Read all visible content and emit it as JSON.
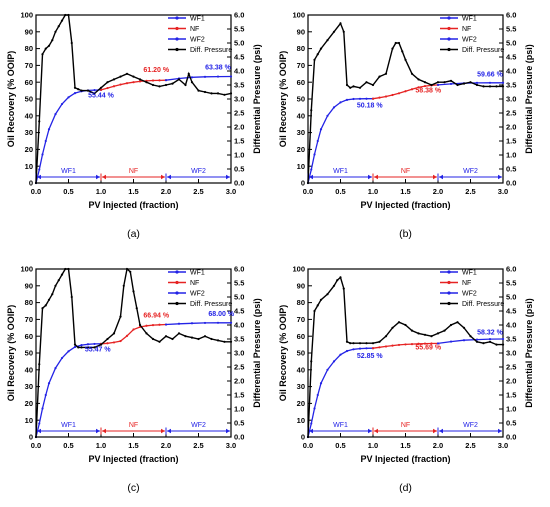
{
  "colors": {
    "wf": "#2323e6",
    "nf": "#e62323",
    "diff": "#000000",
    "axis": "#000000"
  },
  "chart_data": [
    {
      "type": "line",
      "panel_label": "(a)",
      "xlabel": "PV Injected (fraction)",
      "ylabel": "Oil Recovery (% OOIP)",
      "y2label": "Differential Pressure (psi)",
      "xlim": [
        0,
        3.0
      ],
      "ylim": [
        0,
        100
      ],
      "y2lim": [
        0,
        6.0
      ],
      "xticks": [
        "0.0",
        "0.5",
        "1.0",
        "1.5",
        "2.0",
        "2.5",
        "3.0"
      ],
      "yticks": [
        "0",
        "10",
        "20",
        "30",
        "40",
        "50",
        "60",
        "70",
        "80",
        "90",
        "100"
      ],
      "y2ticks": [
        "0.0",
        "0.5",
        "1.0",
        "1.5",
        "2.0",
        "2.5",
        "3.0",
        "3.5",
        "4.0",
        "4.5",
        "5.0",
        "5.5",
        "6.0"
      ],
      "legend": [
        "WF1",
        "NF",
        "WF2",
        "Diff. Pressure"
      ],
      "legend_position": "top-right",
      "phases": [
        {
          "label": "WF1",
          "from": 0,
          "to": 1.0,
          "color_key": "wf"
        },
        {
          "label": "NF",
          "from": 1.0,
          "to": 2.0,
          "color_key": "nf"
        },
        {
          "label": "WF2",
          "from": 2.0,
          "to": 3.0,
          "color_key": "wf"
        }
      ],
      "series": [
        {
          "name": "WF1",
          "axis": "left",
          "color_key": "wf",
          "x": [
            0,
            0.05,
            0.1,
            0.15,
            0.2,
            0.3,
            0.4,
            0.5,
            0.6,
            0.7,
            0.8,
            0.9,
            1.0
          ],
          "y": [
            0,
            8,
            17,
            25,
            32,
            41,
            47,
            51,
            53.5,
            54.6,
            55.1,
            55.3,
            55.44
          ]
        },
        {
          "name": "NF",
          "axis": "left",
          "color_key": "nf",
          "x": [
            1.0,
            1.1,
            1.2,
            1.3,
            1.4,
            1.5,
            1.6,
            1.7,
            1.8,
            1.9,
            2.0
          ],
          "y": [
            55.44,
            56.5,
            57.6,
            58.6,
            59.4,
            60.0,
            60.5,
            60.8,
            61.0,
            61.1,
            61.2
          ]
        },
        {
          "name": "WF2",
          "axis": "left",
          "color_key": "wf",
          "x": [
            2.0,
            2.2,
            2.4,
            2.6,
            2.8,
            3.0
          ],
          "y": [
            61.2,
            62.2,
            62.9,
            63.2,
            63.35,
            63.38
          ]
        },
        {
          "name": "Diff. Pressure",
          "axis": "right",
          "color_key": "diff",
          "x": [
            0,
            0.05,
            0.1,
            0.15,
            0.2,
            0.25,
            0.3,
            0.35,
            0.4,
            0.45,
            0.5,
            0.55,
            0.6,
            0.65,
            0.7,
            0.8,
            0.9,
            1.0,
            1.1,
            1.2,
            1.3,
            1.4,
            1.5,
            1.6,
            1.7,
            1.8,
            1.9,
            2.0,
            2.1,
            2.2,
            2.3,
            2.35,
            2.4,
            2.5,
            2.6,
            2.7,
            2.8,
            2.9,
            3.0
          ],
          "y": [
            0,
            2.2,
            4.6,
            4.8,
            4.9,
            5.1,
            5.4,
            5.6,
            5.8,
            6.0,
            6.0,
            5.0,
            3.4,
            3.35,
            3.3,
            3.3,
            3.2,
            3.4,
            3.6,
            3.7,
            3.8,
            3.9,
            3.8,
            3.7,
            3.6,
            3.5,
            3.45,
            3.5,
            3.55,
            3.7,
            3.5,
            3.9,
            3.6,
            3.3,
            3.25,
            3.2,
            3.2,
            3.15,
            3.2
          ]
        }
      ],
      "annotations": [
        {
          "text": "55.44 %",
          "x": 1.0,
          "y": 51,
          "color_key": "wf"
        },
        {
          "text": "61.20 %",
          "x": 1.85,
          "y": 66,
          "color_key": "nf"
        },
        {
          "text": "63.38 %",
          "x": 2.8,
          "y": 67.5,
          "color_key": "wf"
        }
      ]
    },
    {
      "type": "line",
      "panel_label": "(b)",
      "xlabel": "PV Injected (fraction)",
      "ylabel": "Oil Recovery (% OOIP)",
      "y2label": "Differential Pressure (psi)",
      "xlim": [
        0,
        3.0
      ],
      "ylim": [
        0,
        100
      ],
      "y2lim": [
        0,
        6.0
      ],
      "xticks": [
        "0.0",
        "0.5",
        "1.0",
        "1.5",
        "2.0",
        "2.5",
        "3.0"
      ],
      "yticks": [
        "0",
        "10",
        "20",
        "30",
        "40",
        "50",
        "60",
        "70",
        "80",
        "90",
        "100"
      ],
      "y2ticks": [
        "0.0",
        "0.5",
        "1.0",
        "1.5",
        "2.0",
        "2.5",
        "3.0",
        "3.5",
        "4.0",
        "4.5",
        "5.0",
        "5.5",
        "6.0"
      ],
      "legend": [
        "WF1",
        "NF",
        "WF2",
        "Diff. Pressure"
      ],
      "legend_position": "top-right",
      "phases": [
        {
          "label": "WF1",
          "from": 0,
          "to": 1.0,
          "color_key": "wf"
        },
        {
          "label": "NF",
          "from": 1.0,
          "to": 2.0,
          "color_key": "nf"
        },
        {
          "label": "WF2",
          "from": 2.0,
          "to": 3.0,
          "color_key": "wf"
        }
      ],
      "series": [
        {
          "name": "WF1",
          "axis": "left",
          "color_key": "wf",
          "x": [
            0,
            0.05,
            0.1,
            0.15,
            0.2,
            0.3,
            0.4,
            0.5,
            0.6,
            0.7,
            0.8,
            0.9,
            1.0
          ],
          "y": [
            0,
            8,
            17,
            25,
            32,
            40,
            45,
            48,
            49.5,
            50,
            50.1,
            50.15,
            50.18
          ]
        },
        {
          "name": "NF",
          "axis": "left",
          "color_key": "nf",
          "x": [
            1.0,
            1.1,
            1.2,
            1.3,
            1.4,
            1.5,
            1.6,
            1.7,
            1.8,
            1.9,
            2.0
          ],
          "y": [
            50.18,
            50.8,
            51.5,
            52.4,
            53.4,
            54.6,
            55.8,
            56.9,
            57.7,
            58.1,
            58.38
          ]
        },
        {
          "name": "WF2",
          "axis": "left",
          "color_key": "wf",
          "x": [
            2.0,
            2.2,
            2.4,
            2.6,
            2.8,
            3.0
          ],
          "y": [
            58.38,
            59.0,
            59.4,
            59.6,
            59.65,
            59.66
          ]
        },
        {
          "name": "Diff. Pressure",
          "axis": "right",
          "color_key": "diff",
          "x": [
            0,
            0.05,
            0.1,
            0.15,
            0.2,
            0.3,
            0.4,
            0.5,
            0.55,
            0.6,
            0.65,
            0.7,
            0.8,
            0.9,
            1.0,
            1.1,
            1.2,
            1.3,
            1.35,
            1.4,
            1.45,
            1.5,
            1.6,
            1.7,
            1.8,
            1.9,
            2.0,
            2.1,
            2.2,
            2.3,
            2.4,
            2.5,
            2.6,
            2.7,
            2.8,
            2.9,
            3.0
          ],
          "y": [
            0,
            2.6,
            4.4,
            4.6,
            4.8,
            5.1,
            5.4,
            5.7,
            5.4,
            3.5,
            3.4,
            3.45,
            3.4,
            3.6,
            3.5,
            3.8,
            3.9,
            4.8,
            5.0,
            5.0,
            4.7,
            4.4,
            3.9,
            3.7,
            3.6,
            3.5,
            3.6,
            3.6,
            3.65,
            3.5,
            3.55,
            3.6,
            3.5,
            3.45,
            3.45,
            3.45,
            3.45
          ]
        }
      ],
      "annotations": [
        {
          "text": "50.18 %",
          "x": 0.95,
          "y": 45,
          "color_key": "wf"
        },
        {
          "text": "58.38 %",
          "x": 1.85,
          "y": 54,
          "color_key": "nf"
        },
        {
          "text": "59.66 %",
          "x": 2.8,
          "y": 63.5,
          "color_key": "wf"
        }
      ]
    },
    {
      "type": "line",
      "panel_label": "(c)",
      "xlabel": "PV Injected (fraction)",
      "ylabel": "Oil Recovery (% OOIP)",
      "y2label": "Differential Pressure (psi)",
      "xlim": [
        0,
        3.0
      ],
      "ylim": [
        0,
        100
      ],
      "y2lim": [
        0,
        6.0
      ],
      "xticks": [
        "0.0",
        "0.5",
        "1.0",
        "1.5",
        "2.0",
        "2.5",
        "3.0"
      ],
      "yticks": [
        "0",
        "10",
        "20",
        "30",
        "40",
        "50",
        "60",
        "70",
        "80",
        "90",
        "100"
      ],
      "y2ticks": [
        "0.0",
        "0.5",
        "1.0",
        "1.5",
        "2.0",
        "2.5",
        "3.0",
        "3.5",
        "4.0",
        "4.5",
        "5.0",
        "5.5",
        "6.0"
      ],
      "legend": [
        "WF1",
        "NF",
        "WF2",
        "Diff. Pressure"
      ],
      "legend_position": "top-right",
      "phases": [
        {
          "label": "WF1",
          "from": 0,
          "to": 1.0,
          "color_key": "wf"
        },
        {
          "label": "NF",
          "from": 1.0,
          "to": 2.0,
          "color_key": "nf"
        },
        {
          "label": "WF2",
          "from": 2.0,
          "to": 3.0,
          "color_key": "wf"
        }
      ],
      "series": [
        {
          "name": "WF1",
          "axis": "left",
          "color_key": "wf",
          "x": [
            0,
            0.05,
            0.1,
            0.15,
            0.2,
            0.3,
            0.4,
            0.5,
            0.6,
            0.7,
            0.8,
            0.9,
            1.0
          ],
          "y": [
            0,
            8,
            17,
            25,
            32,
            41,
            47,
            51,
            53.6,
            54.7,
            55.2,
            55.4,
            55.47
          ]
        },
        {
          "name": "NF",
          "axis": "left",
          "color_key": "nf",
          "x": [
            1.0,
            1.1,
            1.2,
            1.3,
            1.4,
            1.5,
            1.6,
            1.7,
            1.8,
            1.9,
            2.0
          ],
          "y": [
            55.47,
            55.8,
            56.3,
            57.1,
            60.2,
            64.0,
            65.5,
            66.2,
            66.6,
            66.8,
            66.94
          ]
        },
        {
          "name": "WF2",
          "axis": "left",
          "color_key": "wf",
          "x": [
            2.0,
            2.2,
            2.4,
            2.6,
            2.8,
            3.0
          ],
          "y": [
            66.94,
            67.4,
            67.7,
            67.9,
            67.98,
            68.0
          ]
        },
        {
          "name": "Diff. Pressure",
          "axis": "right",
          "color_key": "diff",
          "x": [
            0,
            0.05,
            0.1,
            0.15,
            0.2,
            0.25,
            0.3,
            0.35,
            0.4,
            0.45,
            0.5,
            0.55,
            0.6,
            0.65,
            0.7,
            0.8,
            0.9,
            1.0,
            1.1,
            1.2,
            1.3,
            1.35,
            1.4,
            1.45,
            1.5,
            1.55,
            1.6,
            1.7,
            1.8,
            1.9,
            2.0,
            2.1,
            2.2,
            2.3,
            2.4,
            2.5,
            2.6,
            2.7,
            2.8,
            2.9,
            3.0
          ],
          "y": [
            0,
            2.6,
            4.6,
            4.7,
            4.9,
            5.1,
            5.4,
            5.6,
            5.8,
            6.0,
            6.0,
            5.0,
            3.3,
            3.2,
            3.2,
            3.2,
            3.2,
            3.3,
            3.5,
            3.7,
            4.3,
            5.4,
            6.0,
            5.9,
            5.2,
            4.6,
            4.0,
            3.7,
            3.5,
            3.4,
            3.6,
            3.5,
            3.7,
            3.6,
            3.55,
            3.5,
            3.6,
            3.5,
            3.45,
            3.4,
            3.4
          ]
        }
      ],
      "annotations": [
        {
          "text": "55.47 %",
          "x": 0.95,
          "y": 51,
          "color_key": "wf"
        },
        {
          "text": "66.94 %",
          "x": 1.85,
          "y": 71,
          "color_key": "nf"
        },
        {
          "text": "68.00 %",
          "x": 2.85,
          "y": 72,
          "color_key": "wf"
        }
      ]
    },
    {
      "type": "line",
      "panel_label": "(d)",
      "xlabel": "PV Injected (fraction)",
      "ylabel": "Oil Recovery (% OOIP)",
      "y2label": "Differential Pressure (psi)",
      "xlim": [
        0,
        3.0
      ],
      "ylim": [
        0,
        100
      ],
      "y2lim": [
        0,
        6.0
      ],
      "xticks": [
        "0.0",
        "0.5",
        "1.0",
        "1.5",
        "2.0",
        "2.5",
        "3.0"
      ],
      "yticks": [
        "0",
        "10",
        "20",
        "30",
        "40",
        "50",
        "60",
        "70",
        "80",
        "90",
        "100"
      ],
      "y2ticks": [
        "0.0",
        "0.5",
        "1.0",
        "1.5",
        "2.0",
        "2.5",
        "3.0",
        "3.5",
        "4.0",
        "4.5",
        "5.0",
        "5.5",
        "6.0"
      ],
      "legend": [
        "WF1",
        "NF",
        "WF2",
        "Diff. Pressure"
      ],
      "legend_position": "top-right",
      "phases": [
        {
          "label": "WF1",
          "from": 0,
          "to": 1.0,
          "color_key": "wf"
        },
        {
          "label": "NF",
          "from": 1.0,
          "to": 2.0,
          "color_key": "nf"
        },
        {
          "label": "WF2",
          "from": 2.0,
          "to": 3.0,
          "color_key": "wf"
        }
      ],
      "series": [
        {
          "name": "WF1",
          "axis": "left",
          "color_key": "wf",
          "x": [
            0,
            0.05,
            0.1,
            0.15,
            0.2,
            0.3,
            0.4,
            0.5,
            0.6,
            0.7,
            0.8,
            0.9,
            1.0
          ],
          "y": [
            0,
            8,
            17,
            25,
            32,
            40,
            45,
            49,
            51.2,
            52.2,
            52.6,
            52.8,
            52.85
          ]
        },
        {
          "name": "NF",
          "axis": "left",
          "color_key": "nf",
          "x": [
            1.0,
            1.1,
            1.2,
            1.3,
            1.4,
            1.5,
            1.6,
            1.7,
            1.8,
            1.9,
            2.0
          ],
          "y": [
            52.85,
            53.4,
            53.9,
            54.4,
            54.8,
            55.1,
            55.3,
            55.5,
            55.6,
            55.65,
            55.69
          ]
        },
        {
          "name": "WF2",
          "axis": "left",
          "color_key": "wf",
          "x": [
            2.0,
            2.2,
            2.4,
            2.6,
            2.8,
            3.0
          ],
          "y": [
            55.69,
            56.8,
            57.6,
            58.0,
            58.25,
            58.32
          ]
        },
        {
          "name": "Diff. Pressure",
          "axis": "right",
          "color_key": "diff",
          "x": [
            0,
            0.05,
            0.1,
            0.15,
            0.2,
            0.3,
            0.4,
            0.45,
            0.5,
            0.55,
            0.6,
            0.65,
            0.7,
            0.8,
            0.9,
            1.0,
            1.1,
            1.2,
            1.3,
            1.4,
            1.5,
            1.6,
            1.7,
            1.8,
            1.9,
            2.0,
            2.1,
            2.2,
            2.3,
            2.4,
            2.5,
            2.6,
            2.7,
            2.8,
            2.9,
            3.0
          ],
          "y": [
            0,
            2.7,
            4.5,
            4.7,
            4.9,
            5.1,
            5.4,
            5.6,
            5.7,
            5.3,
            3.4,
            3.35,
            3.35,
            3.35,
            3.35,
            3.35,
            3.4,
            3.6,
            3.9,
            4.1,
            4.0,
            3.8,
            3.7,
            3.65,
            3.6,
            3.7,
            3.8,
            4.0,
            4.1,
            3.9,
            3.6,
            3.4,
            3.35,
            3.4,
            3.3,
            3.3
          ]
        }
      ],
      "annotations": [
        {
          "text": "52.85 %",
          "x": 0.95,
          "y": 47,
          "color_key": "wf"
        },
        {
          "text": "55.69 %",
          "x": 1.85,
          "y": 52,
          "color_key": "nf"
        },
        {
          "text": "58.32 %",
          "x": 2.8,
          "y": 61,
          "color_key": "wf"
        }
      ]
    }
  ]
}
